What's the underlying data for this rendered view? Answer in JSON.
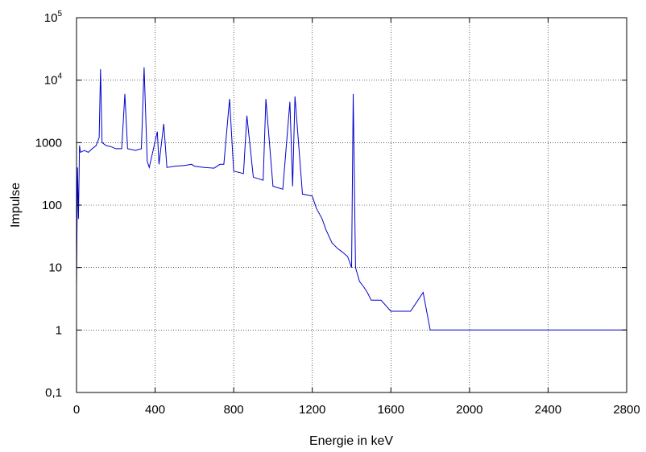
{
  "chart_data": {
    "type": "line",
    "title": "",
    "xlabel": "Energie in keV",
    "ylabel": "Impulse",
    "xlim": [
      0,
      2800
    ],
    "ylim": [
      0.1,
      100000
    ],
    "yscale": "log",
    "grid": true,
    "line_color": "#0000cc",
    "x_ticks": [
      {
        "value": 0,
        "label": "0"
      },
      {
        "value": 400,
        "label": "400"
      },
      {
        "value": 800,
        "label": "800"
      },
      {
        "value": 1200,
        "label": "1200"
      },
      {
        "value": 1600,
        "label": "1600"
      },
      {
        "value": 2000,
        "label": "2000"
      },
      {
        "value": 2400,
        "label": "2400"
      },
      {
        "value": 2800,
        "label": "2800"
      }
    ],
    "y_ticks": [
      {
        "value": 0.1,
        "label": "0,1"
      },
      {
        "value": 1,
        "label": "1"
      },
      {
        "value": 10,
        "label": "10"
      },
      {
        "value": 100,
        "label": "100"
      },
      {
        "value": 1000,
        "label": "1000"
      },
      {
        "value": 10000,
        "base": "10",
        "exp": "4"
      },
      {
        "value": 100000,
        "base": "10",
        "exp": "5"
      }
    ],
    "series": [
      {
        "x": [
          0,
          5,
          10,
          15,
          20,
          40,
          60,
          80,
          100,
          115,
          122,
          130,
          150,
          180,
          200,
          230,
          246,
          260,
          300,
          330,
          344,
          360,
          370,
          411,
          420,
          444,
          460,
          500,
          550,
          586,
          600,
          650,
          700,
          730,
          750,
          779,
          800,
          850,
          867,
          900,
          950,
          964,
          1000,
          1050,
          1086,
          1100,
          1112,
          1150,
          1200,
          1220,
          1250,
          1270,
          1300,
          1330,
          1350,
          1380,
          1400,
          1408,
          1420,
          1440,
          1460,
          1480,
          1500,
          1550,
          1600,
          1650,
          1700,
          1764,
          1800,
          1900,
          2000,
          2100,
          2200,
          2300,
          2400,
          2500,
          2600,
          2700,
          2800
        ],
        "y": [
          5,
          400,
          60,
          900,
          700,
          750,
          700,
          800,
          900,
          1200,
          15000,
          1000,
          900,
          850,
          800,
          800,
          6000,
          800,
          750,
          800,
          16000,
          500,
          400,
          1500,
          450,
          2000,
          400,
          420,
          430,
          450,
          420,
          400,
          390,
          450,
          450,
          5000,
          350,
          320,
          2700,
          280,
          250,
          5000,
          200,
          180,
          4500,
          200,
          5500,
          150,
          140,
          90,
          60,
          40,
          25,
          20,
          18,
          15,
          10,
          6000,
          10,
          6,
          5,
          4,
          3,
          3,
          2,
          2,
          2,
          4,
          1,
          1,
          1,
          1,
          1,
          1,
          1,
          1,
          1,
          1,
          1
        ]
      }
    ]
  }
}
